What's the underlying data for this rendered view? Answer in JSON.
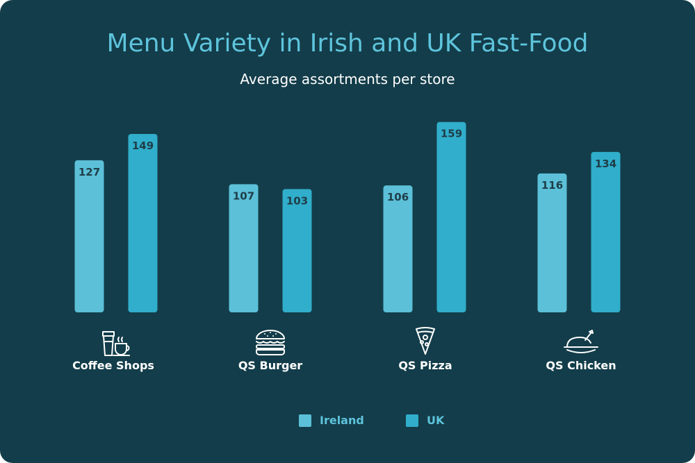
{
  "chart_data": {
    "type": "bar",
    "title": "Menu Variety in Irish and UK Fast-Food",
    "subtitle": "Average assortments per store",
    "categories": [
      "Coffee Shops",
      "QS Burger",
      "QS Pizza",
      "QS Chicken"
    ],
    "category_icons": [
      "coffee-cups-icon",
      "burger-icon",
      "pizza-slice-icon",
      "roast-chicken-icon"
    ],
    "series": [
      {
        "name": "Ireland",
        "values": [
          127,
          107,
          106,
          116
        ],
        "color": "#5bc0d8"
      },
      {
        "name": "UK",
        "values": [
          149,
          103,
          159,
          134
        ],
        "color": "#30aecb"
      }
    ],
    "ylim": [
      0,
      160
    ],
    "grid": false,
    "legend_position": "bottom-center",
    "data_labels": true
  },
  "colors": {
    "background": "#133d4a",
    "title": "#5ec4dc",
    "label_text": "#1f3e48"
  }
}
